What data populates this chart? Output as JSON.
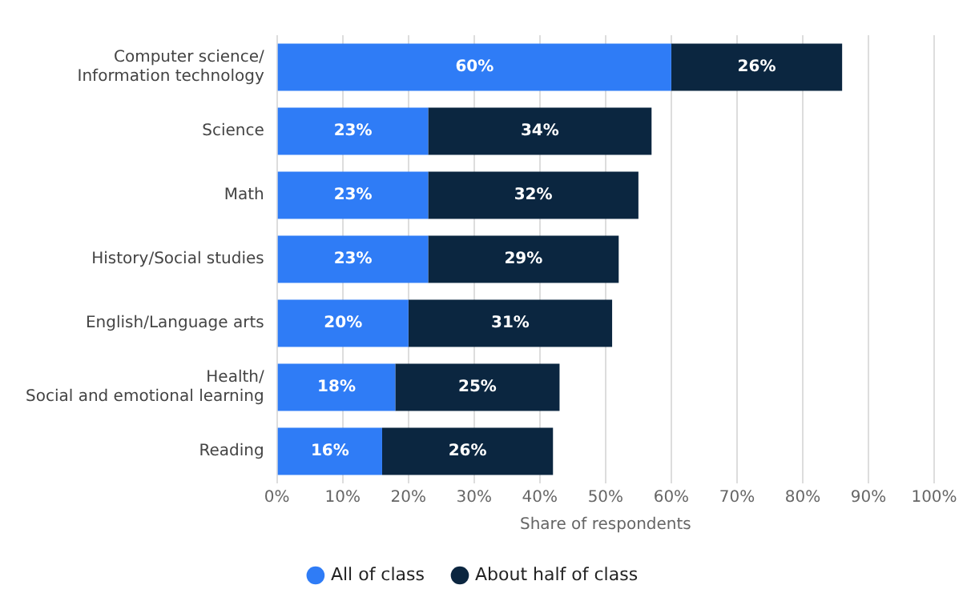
{
  "chart_data": {
    "type": "bar",
    "orientation": "horizontal",
    "stacked": true,
    "categories": [
      "Computer science/Information technology",
      "Science",
      "Math",
      "History/Social studies",
      "English/Language arts",
      "Health/Social and emotional learning",
      "Reading"
    ],
    "series": [
      {
        "name": "All of class",
        "color": "#2f7cf6",
        "values": [
          60,
          23,
          23,
          23,
          20,
          18,
          16
        ],
        "value_labels": [
          "60%",
          "23%",
          "23%",
          "23%",
          "20%",
          "18%",
          "16%"
        ]
      },
      {
        "name": "About half of class",
        "color": "#0b2640",
        "values": [
          26,
          34,
          32,
          29,
          31,
          25,
          26
        ],
        "value_labels": [
          "26%",
          "34%",
          "32%",
          "29%",
          "31%",
          "25%",
          "26%"
        ]
      }
    ],
    "xlabel": "Share of respondents",
    "xlim": [
      0,
      100
    ],
    "xticks": [
      {
        "value": 0,
        "label": "0%"
      },
      {
        "value": 10,
        "label": "10%"
      },
      {
        "value": 20,
        "label": "20%"
      },
      {
        "value": 30,
        "label": "30%"
      },
      {
        "value": 40,
        "label": "40%"
      },
      {
        "value": 50,
        "label": "50%"
      },
      {
        "value": 60,
        "label": "60%"
      },
      {
        "value": 70,
        "label": "70%"
      },
      {
        "value": 80,
        "label": "80%"
      },
      {
        "value": 90,
        "label": "90%"
      },
      {
        "value": 100,
        "label": "100%"
      }
    ],
    "grid": "x",
    "legend": "bottom"
  }
}
